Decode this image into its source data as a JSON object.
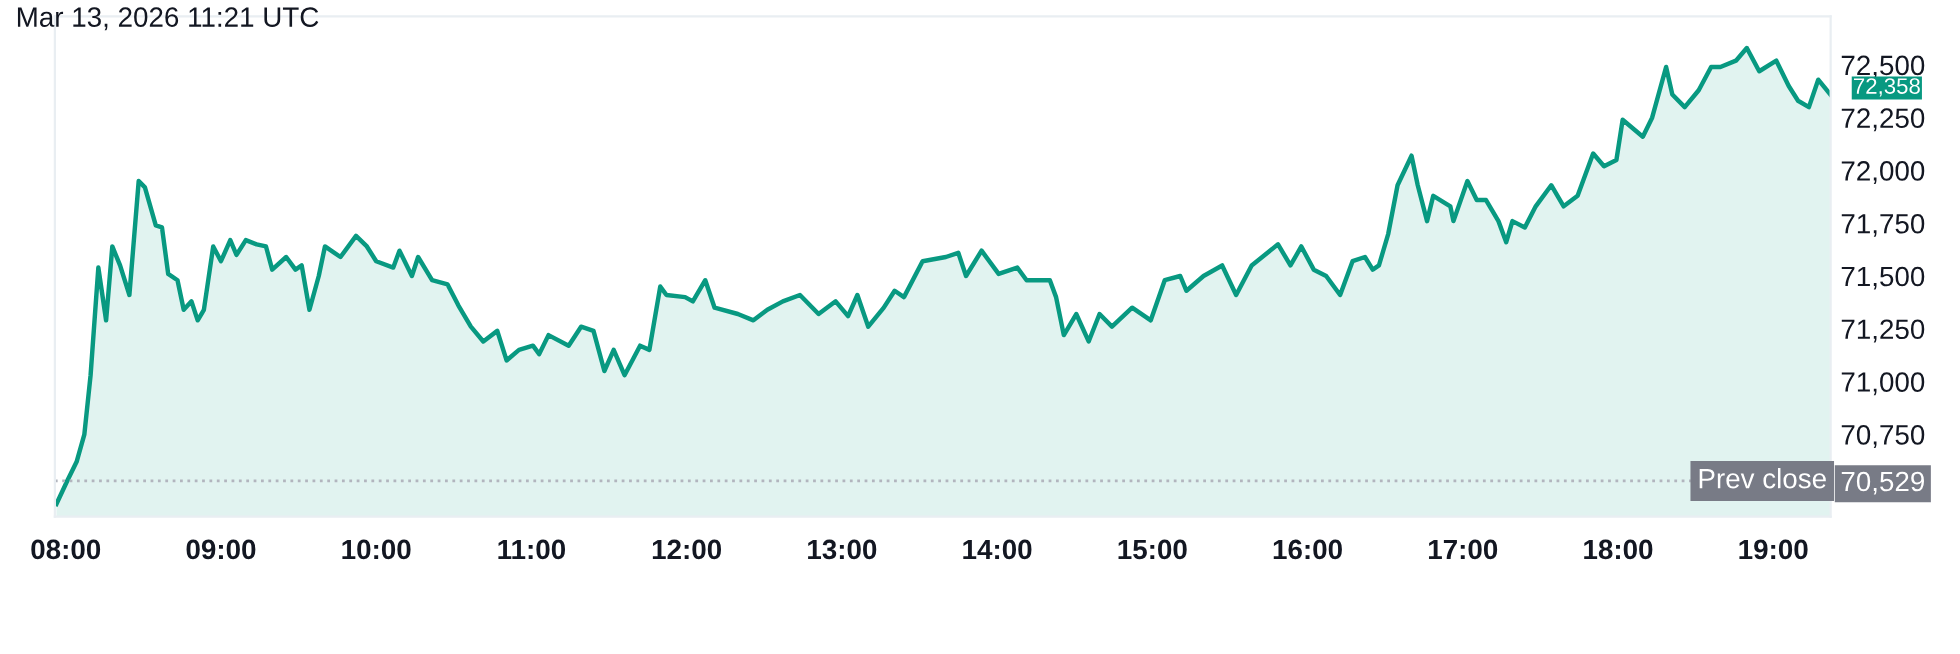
{
  "chart_data": {
    "type": "area",
    "title": "Mar 13, 2026 11:21 UTC",
    "x": [
      7.94,
      8.01,
      8.07,
      8.12,
      8.16,
      8.21,
      8.26,
      8.3,
      8.35,
      8.41,
      8.47,
      8.51,
      8.58,
      8.62,
      8.66,
      8.72,
      8.76,
      8.81,
      8.85,
      8.89,
      8.95,
      9.0,
      9.06,
      9.1,
      9.16,
      9.23,
      9.29,
      9.33,
      9.42,
      9.48,
      9.52,
      9.57,
      9.63,
      9.67,
      9.77,
      9.87,
      9.94,
      10.0,
      10.11,
      10.15,
      10.23,
      10.27,
      10.36,
      10.46,
      10.53,
      10.61,
      10.69,
      10.78,
      10.84,
      10.92,
      11.01,
      11.05,
      11.11,
      11.24,
      11.32,
      11.4,
      11.47,
      11.53,
      11.6,
      11.7,
      11.76,
      11.83,
      11.87,
      11.99,
      12.04,
      12.12,
      12.18,
      12.33,
      12.43,
      12.52,
      12.62,
      12.73,
      12.85,
      12.96,
      13.04,
      13.1,
      13.17,
      13.27,
      13.34,
      13.4,
      13.52,
      13.67,
      13.75,
      13.8,
      13.9,
      14.01,
      14.13,
      14.19,
      14.34,
      14.38,
      14.43,
      14.51,
      14.59,
      14.66,
      14.74,
      14.87,
      14.99,
      15.08,
      15.18,
      15.22,
      15.33,
      15.45,
      15.54,
      15.64,
      15.81,
      15.89,
      15.96,
      16.04,
      16.12,
      16.21,
      16.29,
      16.37,
      16.42,
      16.46,
      16.52,
      16.58,
      16.67,
      16.71,
      16.77,
      16.81,
      16.92,
      16.94,
      17.03,
      17.09,
      17.15,
      17.23,
      17.28,
      17.32,
      17.4,
      17.47,
      17.57,
      17.65,
      17.74,
      17.84,
      17.91,
      17.99,
      18.03,
      18.16,
      18.22,
      18.31,
      18.35,
      18.43,
      18.52,
      18.6,
      18.66,
      18.76,
      18.83,
      18.91,
      19.02,
      19.1,
      19.16,
      19.23,
      19.29,
      19.37
    ],
    "series": [
      {
        "color": "#089981",
        "values": [
          70420,
          70530,
          70620,
          70750,
          71030,
          71540,
          71290,
          71640,
          71550,
          71410,
          71950,
          71920,
          71740,
          71730,
          71510,
          71480,
          71340,
          71380,
          71290,
          71340,
          71640,
          71570,
          71670,
          71600,
          71670,
          71650,
          71640,
          71530,
          71590,
          71530,
          71550,
          71340,
          71500,
          71640,
          71590,
          71690,
          71640,
          71570,
          71540,
          71620,
          71500,
          71590,
          71480,
          71460,
          71360,
          71260,
          71190,
          71240,
          71100,
          71150,
          71170,
          71130,
          71220,
          71170,
          71260,
          71240,
          71050,
          71150,
          71030,
          71170,
          71150,
          71450,
          71410,
          71400,
          71380,
          71480,
          71350,
          71320,
          71290,
          71340,
          71380,
          71410,
          71320,
          71380,
          71310,
          71410,
          71260,
          71350,
          71430,
          71400,
          71570,
          71590,
          71610,
          71500,
          71620,
          71510,
          71540,
          71480,
          71480,
          71400,
          71220,
          71320,
          71190,
          71320,
          71260,
          71350,
          71290,
          71480,
          71500,
          71430,
          71500,
          71550,
          71410,
          71550,
          71650,
          71550,
          71640,
          71530,
          71500,
          71410,
          71570,
          71590,
          71530,
          71550,
          71700,
          71930,
          72070,
          71930,
          71760,
          71880,
          71830,
          71760,
          71950,
          71860,
          71860,
          71760,
          71660,
          71760,
          71730,
          71830,
          71930,
          71830,
          71880,
          72080,
          72020,
          72050,
          72240,
          72160,
          72250,
          72490,
          72360,
          72300,
          72380,
          72490,
          72490,
          72520,
          72580,
          72470,
          72520,
          72400,
          72330,
          72300,
          72430,
          72358
        ]
      }
    ],
    "xlim": [
      7.93,
      19.37
    ],
    "ylim": [
      70360,
      72730
    ],
    "xticks": [
      {
        "value": 8,
        "label": "08:00"
      },
      {
        "value": 9,
        "label": "09:00"
      },
      {
        "value": 10,
        "label": "10:00"
      },
      {
        "value": 11,
        "label": "11:00"
      },
      {
        "value": 12,
        "label": "12:00"
      },
      {
        "value": 13,
        "label": "13:00"
      },
      {
        "value": 14,
        "label": "14:00"
      },
      {
        "value": 15,
        "label": "15:00"
      },
      {
        "value": 16,
        "label": "16:00"
      },
      {
        "value": 17,
        "label": "17:00"
      },
      {
        "value": 18,
        "label": "18:00"
      },
      {
        "value": 19,
        "label": "19:00"
      }
    ],
    "yticks": [
      {
        "value": 70529,
        "label": "70,529"
      },
      {
        "value": 70750,
        "label": "70,750"
      },
      {
        "value": 71000,
        "label": "71,000"
      },
      {
        "value": 71250,
        "label": "71,250"
      },
      {
        "value": 71500,
        "label": "71,500"
      },
      {
        "value": 71750,
        "label": "71,750"
      },
      {
        "value": 72000,
        "label": "72,000"
      },
      {
        "value": 72250,
        "label": "72,250"
      },
      {
        "value": 72500,
        "label": "72,500"
      }
    ],
    "ref_lines": [
      {
        "axis": "y",
        "value": 70529,
        "label": "Prev close",
        "color": "#b2b5be",
        "line_style": "dotted"
      }
    ],
    "annotations": [
      {
        "text": "72,358",
        "x": 19.37,
        "y": 72358
      }
    ],
    "grid": false
  }
}
